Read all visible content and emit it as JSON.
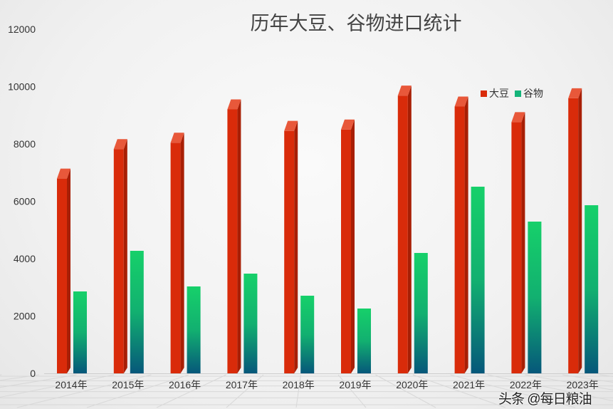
{
  "chart_data": {
    "type": "bar",
    "title": "历年大豆、谷物进口统计",
    "categories": [
      "2014年",
      "2015年",
      "2016年",
      "2017年",
      "2018年",
      "2019年",
      "2020年",
      "2021年",
      "2022年",
      "2023年"
    ],
    "series": [
      {
        "name": "大豆",
        "color": "#d92b0a",
        "values": [
          7140,
          8169,
          8391,
          9553,
          8803,
          8851,
          10033,
          9652,
          9108,
          9941
        ]
      },
      {
        "name": "谷物",
        "color": "#14c96a",
        "values": [
          2857,
          4273,
          3031,
          3478,
          2708,
          2261,
          4199,
          6509,
          5292,
          5863
        ]
      }
    ],
    "ylim": [
      0,
      12000
    ],
    "yticks": [
      0,
      2000,
      4000,
      6000,
      8000,
      10000,
      12000
    ],
    "legend": "top-right",
    "grid": false
  },
  "watermark": "头条 @每日粮油"
}
